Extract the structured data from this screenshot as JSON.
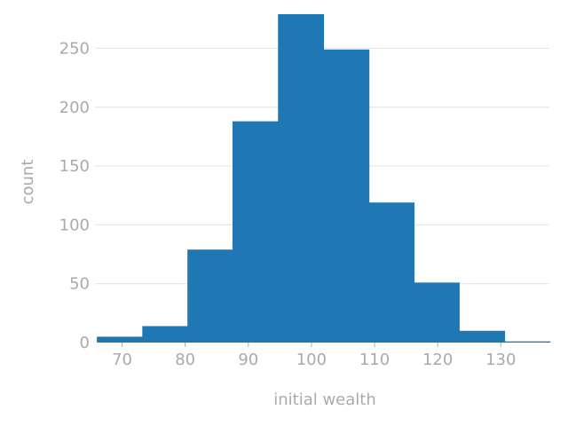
{
  "chart_data": {
    "type": "bar",
    "title": "",
    "xlabel": "initial wealth",
    "ylabel": "count",
    "xlim": [
      65.7,
      137.7
    ],
    "ylim": [
      0,
      282
    ],
    "grid": "horizontal",
    "bar_color": "#1f77b4",
    "bin_edges": [
      66.0,
      73.2,
      80.35,
      87.5,
      94.7,
      101.9,
      109.1,
      116.25,
      123.4,
      130.6,
      137.8
    ],
    "values": [
      5,
      14,
      79,
      188,
      279,
      249,
      119,
      51,
      10,
      1
    ],
    "x_ticks": [
      70,
      80,
      90,
      100,
      110,
      120,
      130
    ],
    "y_ticks": [
      0,
      50,
      100,
      150,
      200,
      250
    ]
  }
}
